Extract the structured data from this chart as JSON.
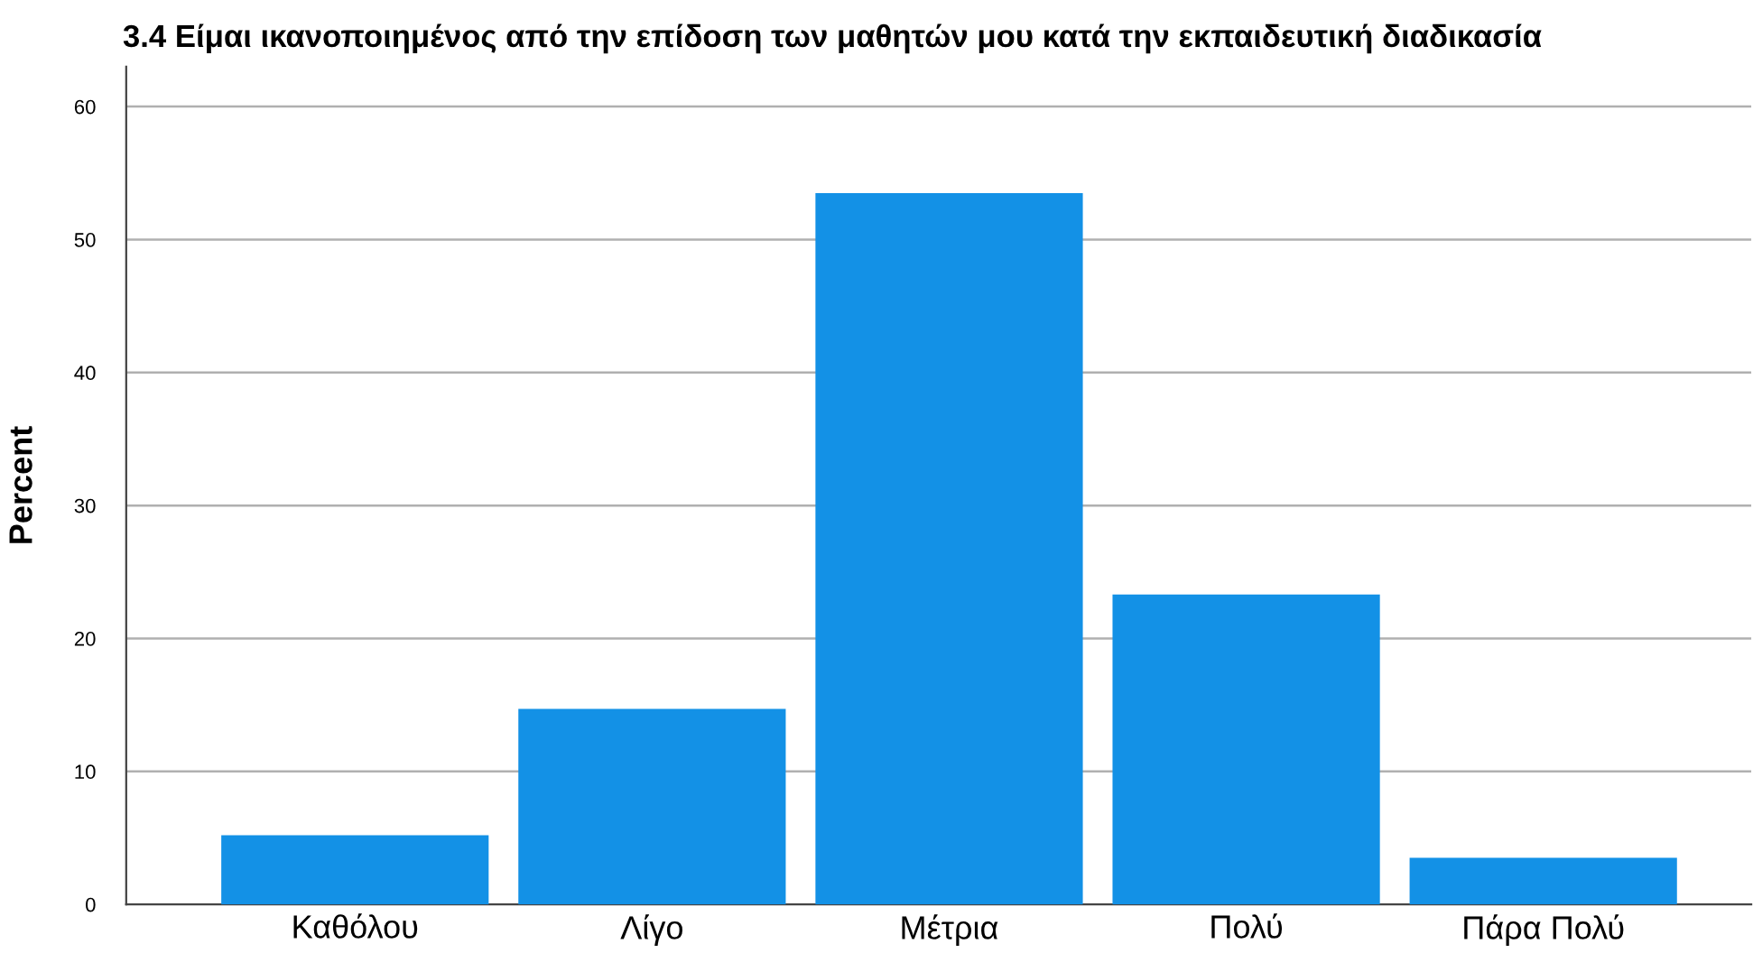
{
  "chart_data": {
    "type": "bar",
    "title": "3.4 Είμαι ικανοποιημένος από την επίδοση των μαθητών μου κατά την εκπαιδευτική διαδικασία",
    "ylabel": "Percent",
    "categories": [
      "Καθόλου",
      "Λίγο",
      "Μέτρια",
      "Πολύ",
      "Πάρα Πολύ"
    ],
    "values": [
      5.2,
      14.7,
      53.5,
      23.3,
      3.5
    ],
    "color": "#1391e6",
    "ylim": [
      0,
      63
    ],
    "yticks": [
      0,
      10,
      20,
      30,
      40,
      50,
      60
    ],
    "grid": "y"
  }
}
